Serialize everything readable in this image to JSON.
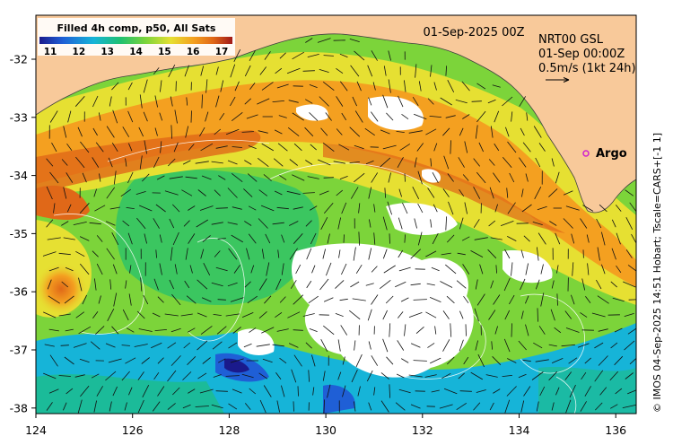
{
  "colorbar": {
    "title": "Filled 4h comp, p50, All Sats",
    "ticks": [
      "11",
      "12",
      "13",
      "14",
      "15",
      "16",
      "17"
    ]
  },
  "date_label": "01-Sep-2025 00Z",
  "current_legend": {
    "line1": "NRT00 GSL",
    "line2": "01-Sep 00:00Z",
    "line3": "0.5m/s (1kt 24h)"
  },
  "argo_label": "Argo",
  "credit": "© IMOS 04-Sep-2025 14:51 Hobart; Tscale=CARS+[-1 1]",
  "x_ticks": [
    "124",
    "126",
    "128",
    "130",
    "132",
    "134",
    "136"
  ],
  "y_ticks": [
    "-32",
    "-33",
    "-34",
    "-35",
    "-36",
    "-37",
    "-38"
  ],
  "colors": {
    "land": "#f8c99a",
    "sst_scale": [
      "#1a1a8c",
      "#1f5fd6",
      "#16b4d8",
      "#1fc070",
      "#7cd43a",
      "#e6e032",
      "#f4a020",
      "#e06818",
      "#a01818"
    ],
    "argo": "#d020d0"
  }
}
